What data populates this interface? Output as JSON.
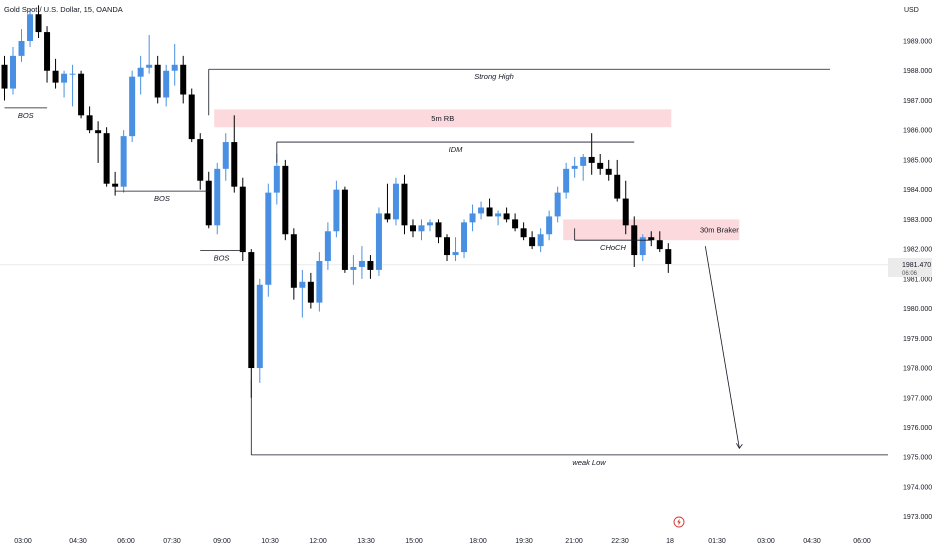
{
  "header": {
    "symbol_title": "Gold Spot / U.S. Dollar, 15, OANDA",
    "currency": "USD"
  },
  "price_tag": {
    "price": "1981.470",
    "countdown": "06:06"
  },
  "colors": {
    "up": "#4a90e2",
    "down": "#000000",
    "zone": "#fcd9dc",
    "line": "#131722"
  },
  "alert_icon": "lightning-bolt-icon",
  "chart_data": {
    "type": "candlestick",
    "ylim": [
      1972.6,
      1990.6
    ],
    "y_ticks": [
      "1973.000",
      "1974.000",
      "1975.000",
      "1976.000",
      "1977.000",
      "1978.000",
      "1979.000",
      "1980.000",
      "1981.000",
      "1982.000",
      "1983.000",
      "1984.000",
      "1985.000",
      "1986.000",
      "1987.000",
      "1988.000",
      "1989.000"
    ],
    "x_ticks": [
      "03:00",
      "04:30",
      "06:00",
      "07:30",
      "09:00",
      "10:30",
      "12:00",
      "13:30",
      "15:00",
      "18:00",
      "19:30",
      "21:00",
      "22:30",
      "18",
      "01:30",
      "03:00",
      "04:30",
      "06:00"
    ],
    "candles": [
      [
        1988.2,
        1988.5,
        1987.0,
        1987.4
      ],
      [
        1987.4,
        1988.8,
        1987.2,
        1988.5
      ],
      [
        1988.5,
        1989.4,
        1988.3,
        1989.0
      ],
      [
        1989.0,
        1990.1,
        1988.8,
        1989.9
      ],
      [
        1989.9,
        1990.2,
        1989.1,
        1989.3
      ],
      [
        1989.3,
        1989.5,
        1987.6,
        1988.0
      ],
      [
        1988.0,
        1988.4,
        1987.4,
        1987.6
      ],
      [
        1987.6,
        1988.0,
        1987.1,
        1987.9
      ],
      [
        1987.9,
        1988.2,
        1986.8,
        1987.9
      ],
      [
        1987.9,
        1988.0,
        1986.4,
        1986.5
      ],
      [
        1986.5,
        1986.8,
        1985.9,
        1986.0
      ],
      [
        1986.0,
        1986.3,
        1984.9,
        1985.9
      ],
      [
        1985.9,
        1986.1,
        1984.1,
        1984.2
      ],
      [
        1984.2,
        1984.6,
        1983.8,
        1984.1
      ],
      [
        1984.1,
        1986.0,
        1983.9,
        1985.8
      ],
      [
        1985.8,
        1988.0,
        1985.6,
        1987.8
      ],
      [
        1987.8,
        1988.5,
        1987.2,
        1988.1
      ],
      [
        1988.1,
        1989.2,
        1987.9,
        1988.2
      ],
      [
        1988.2,
        1988.5,
        1986.9,
        1987.1
      ],
      [
        1987.1,
        1988.2,
        1986.8,
        1988.0
      ],
      [
        1988.0,
        1988.9,
        1987.5,
        1988.2
      ],
      [
        1988.2,
        1988.5,
        1986.9,
        1987.2
      ],
      [
        1987.2,
        1987.4,
        1985.6,
        1985.7
      ],
      [
        1985.7,
        1985.9,
        1984.0,
        1984.3
      ],
      [
        1984.3,
        1984.6,
        1982.7,
        1982.8
      ],
      [
        1982.8,
        1984.9,
        1982.5,
        1984.7
      ],
      [
        1984.7,
        1985.9,
        1984.3,
        1985.6
      ],
      [
        1985.6,
        1986.5,
        1983.9,
        1984.1
      ],
      [
        1984.1,
        1984.4,
        1981.6,
        1981.9
      ],
      [
        1981.9,
        1982.0,
        1977.0,
        1978.0
      ],
      [
        1978.0,
        1981.0,
        1977.5,
        1980.8
      ],
      [
        1980.8,
        1984.2,
        1980.4,
        1983.9
      ],
      [
        1983.9,
        1985.2,
        1983.5,
        1984.8
      ],
      [
        1984.8,
        1985.0,
        1982.3,
        1982.5
      ],
      [
        1982.5,
        1982.7,
        1980.3,
        1980.7
      ],
      [
        1980.7,
        1981.3,
        1979.7,
        1980.9
      ],
      [
        1980.9,
        1981.2,
        1980.0,
        1980.2
      ],
      [
        1980.2,
        1981.9,
        1979.9,
        1981.6
      ],
      [
        1981.6,
        1982.9,
        1981.3,
        1982.6
      ],
      [
        1982.6,
        1984.3,
        1982.4,
        1984.0
      ],
      [
        1984.0,
        1984.1,
        1981.2,
        1981.3
      ],
      [
        1981.3,
        1981.8,
        1980.8,
        1981.4
      ],
      [
        1981.4,
        1982.1,
        1981.0,
        1981.6
      ],
      [
        1981.6,
        1981.8,
        1981.0,
        1981.3
      ],
      [
        1981.3,
        1983.4,
        1981.1,
        1983.2
      ],
      [
        1983.2,
        1984.2,
        1982.9,
        1983.0
      ],
      [
        1983.0,
        1984.4,
        1982.8,
        1984.2
      ],
      [
        1984.2,
        1984.5,
        1982.5,
        1982.8
      ],
      [
        1982.8,
        1983.0,
        1982.4,
        1982.6
      ],
      [
        1982.6,
        1983.0,
        1982.3,
        1982.8
      ],
      [
        1982.8,
        1983.0,
        1982.6,
        1982.9
      ],
      [
        1982.9,
        1983.0,
        1982.2,
        1982.4
      ],
      [
        1982.4,
        1982.5,
        1981.6,
        1981.8
      ],
      [
        1981.8,
        1982.4,
        1981.6,
        1981.9
      ],
      [
        1981.9,
        1983.0,
        1981.7,
        1982.9
      ],
      [
        1982.9,
        1983.5,
        1982.6,
        1983.2
      ],
      [
        1983.2,
        1983.6,
        1983.0,
        1983.4
      ],
      [
        1983.4,
        1983.7,
        1983.1,
        1983.1
      ],
      [
        1983.1,
        1983.3,
        1982.8,
        1983.2
      ],
      [
        1983.2,
        1983.4,
        1982.9,
        1983.0
      ],
      [
        1983.0,
        1983.2,
        1982.6,
        1982.7
      ],
      [
        1982.7,
        1982.9,
        1982.3,
        1982.4
      ],
      [
        1982.4,
        1982.6,
        1982.0,
        1982.1
      ],
      [
        1982.1,
        1982.7,
        1981.9,
        1982.5
      ],
      [
        1982.5,
        1983.3,
        1982.3,
        1983.1
      ],
      [
        1983.1,
        1984.1,
        1982.9,
        1983.9
      ],
      [
        1983.9,
        1984.9,
        1983.7,
        1984.7
      ],
      [
        1984.7,
        1985.1,
        1984.4,
        1984.8
      ],
      [
        1984.8,
        1985.2,
        1984.3,
        1985.1
      ],
      [
        1985.1,
        1985.9,
        1984.5,
        1984.9
      ],
      [
        1984.9,
        1985.2,
        1984.5,
        1984.7
      ],
      [
        1984.7,
        1985.0,
        1984.3,
        1984.5
      ],
      [
        1984.5,
        1985.0,
        1983.6,
        1983.7
      ],
      [
        1983.7,
        1984.3,
        1982.5,
        1982.8
      ],
      [
        1982.8,
        1983.1,
        1981.4,
        1981.8
      ],
      [
        1981.8,
        1982.5,
        1981.6,
        1982.4
      ],
      [
        1982.4,
        1982.6,
        1982.1,
        1982.3
      ],
      [
        1982.3,
        1982.6,
        1981.9,
        1982.0
      ],
      [
        1982.0,
        1982.2,
        1981.2,
        1981.5
      ]
    ],
    "annotations": [
      {
        "label": "BOS",
        "line_price": 1986.75,
        "from_index": 0,
        "to_index": 5
      },
      {
        "label": "BOS",
        "line_price": 1983.95,
        "from_index": 13,
        "to_index": 24
      },
      {
        "label": "BOS",
        "line_price": 1981.95,
        "from_index": 23,
        "to_index": 28
      },
      {
        "label": "Strong High",
        "line_price": 1988.05,
        "from_index": 24,
        "to_index": 97
      },
      {
        "label": "IDM",
        "line_price": 1985.6,
        "from_index": 32,
        "to_index": 74
      },
      {
        "label": "CHoCH",
        "line_price": 1982.3,
        "from_index": 67,
        "to_index": 76
      },
      {
        "label": "weak Low",
        "line_price": 1975.08,
        "from_index": 29,
        "to_index": 114
      }
    ],
    "zones": [
      {
        "label": "5m RB",
        "from_index": 25,
        "to_index": 78,
        "top": 1986.7,
        "bottom": 1986.1
      },
      {
        "label": "30m Braker",
        "from_index": 66,
        "to_index": 86,
        "top": 1983.0,
        "bottom": 1982.3
      }
    ],
    "projection": {
      "from_index": 82,
      "from_price": 1982.1,
      "to_index": 86,
      "to_price": 1975.3
    }
  }
}
